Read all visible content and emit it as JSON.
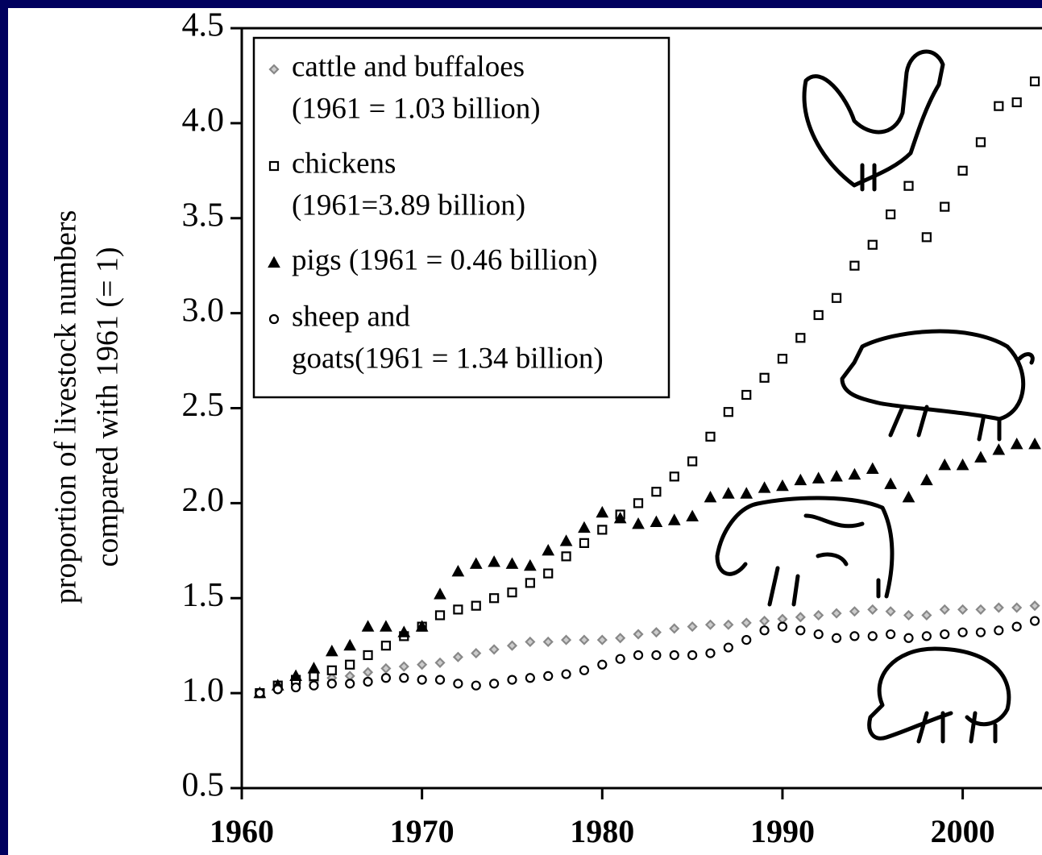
{
  "chart_data": {
    "type": "scatter",
    "ylabel": [
      "proportion of livestock numbers",
      "compared with 1961 (= 1)"
    ],
    "x": [
      1961,
      1962,
      1963,
      1964,
      1965,
      1966,
      1967,
      1968,
      1969,
      1970,
      1971,
      1972,
      1973,
      1974,
      1975,
      1976,
      1977,
      1978,
      1979,
      1980,
      1981,
      1982,
      1983,
      1984,
      1985,
      1986,
      1987,
      1988,
      1989,
      1990,
      1991,
      1992,
      1993,
      1994,
      1995,
      1996,
      1997,
      1998,
      1999,
      2000,
      2001,
      2002,
      2003,
      2004
    ],
    "xlim": [
      1960,
      2004.4
    ],
    "xticks": [
      1960,
      1970,
      1980,
      1990,
      2000
    ],
    "ylim": [
      0.5,
      4.5
    ],
    "yticks": [
      0.5,
      {
        "value": 1,
        "label": "1.0"
      },
      1.5,
      {
        "value": 2,
        "label": "2.0"
      },
      2.5,
      {
        "value": 3,
        "label": "3.0"
      },
      3.5,
      {
        "value": 4,
        "label": "4.0"
      },
      4.5
    ],
    "series": [
      {
        "name": "cattle and buffaloes",
        "note": "(1961 = 1.03 billion)",
        "marker": "diamond",
        "color": "#888888",
        "values": [
          1.0,
          1.02,
          1.04,
          1.06,
          1.08,
          1.09,
          1.11,
          1.13,
          1.14,
          1.15,
          1.16,
          1.19,
          1.21,
          1.23,
          1.25,
          1.27,
          1.27,
          1.28,
          1.28,
          1.28,
          1.29,
          1.31,
          1.32,
          1.34,
          1.35,
          1.36,
          1.36,
          1.37,
          1.38,
          1.39,
          1.4,
          1.41,
          1.42,
          1.43,
          1.44,
          1.43,
          1.41,
          1.41,
          1.44,
          1.44,
          1.44,
          1.45,
          1.45,
          1.46
        ]
      },
      {
        "name": "chickens",
        "note": "(1961=3.89 billion)",
        "marker": "square",
        "color": "#000000",
        "values": [
          1.0,
          1.04,
          1.07,
          1.09,
          1.12,
          1.15,
          1.2,
          1.25,
          1.3,
          1.35,
          1.41,
          1.44,
          1.46,
          1.5,
          1.53,
          1.58,
          1.63,
          1.72,
          1.79,
          1.86,
          1.94,
          2.0,
          2.06,
          2.14,
          2.22,
          2.35,
          2.48,
          2.57,
          2.66,
          2.76,
          2.87,
          2.99,
          3.08,
          3.25,
          3.36,
          3.52,
          3.67,
          3.4,
          3.56,
          3.75,
          3.9,
          4.09,
          4.11,
          4.22
        ]
      },
      {
        "name": "pigs (1961 = 0.46 billion)",
        "marker": "triangle",
        "color": "#000000",
        "values": [
          1.0,
          1.04,
          1.09,
          1.13,
          1.22,
          1.25,
          1.35,
          1.35,
          1.32,
          1.35,
          1.52,
          1.64,
          1.68,
          1.69,
          1.68,
          1.67,
          1.75,
          1.8,
          1.87,
          1.95,
          1.92,
          1.89,
          1.9,
          1.91,
          1.93,
          2.03,
          2.05,
          2.05,
          2.08,
          2.09,
          2.12,
          2.13,
          2.14,
          2.15,
          2.18,
          2.1,
          2.03,
          2.12,
          2.2,
          2.2,
          2.24,
          2.28,
          2.31,
          2.31
        ]
      },
      {
        "name": "sheep and",
        "note": "goats(1961 = 1.34 billion)",
        "marker": "circle",
        "color": "#000000",
        "values": [
          1.0,
          1.02,
          1.03,
          1.04,
          1.05,
          1.05,
          1.06,
          1.08,
          1.08,
          1.07,
          1.07,
          1.05,
          1.04,
          1.05,
          1.07,
          1.08,
          1.09,
          1.1,
          1.12,
          1.15,
          1.18,
          1.2,
          1.2,
          1.2,
          1.2,
          1.21,
          1.24,
          1.28,
          1.33,
          1.35,
          1.33,
          1.31,
          1.29,
          1.3,
          1.3,
          1.31,
          1.29,
          1.3,
          1.31,
          1.32,
          1.32,
          1.33,
          1.35,
          1.38
        ]
      }
    ]
  }
}
